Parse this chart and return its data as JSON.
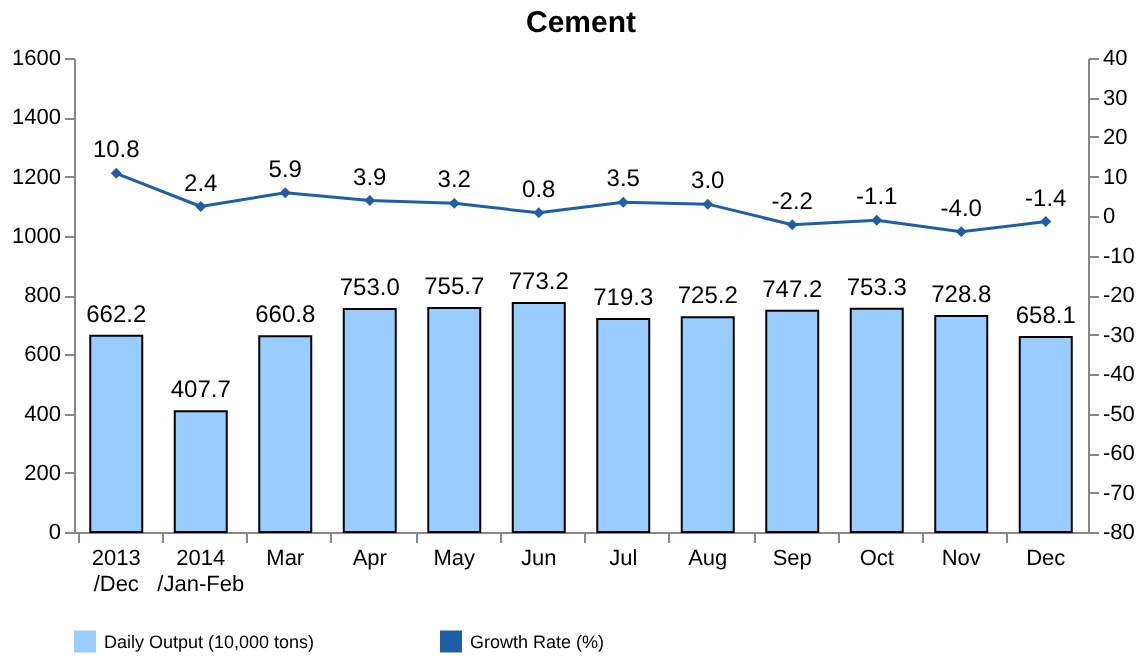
{
  "chart_data": {
    "type": "bar",
    "title": "Cement",
    "categories": [
      "2013\n/Dec",
      "2014\n/Jan-Feb",
      "Mar",
      "Apr",
      "May",
      "Jun",
      "Jul",
      "Aug",
      "Sep",
      "Oct",
      "Nov",
      "Dec"
    ],
    "series": [
      {
        "name": "Daily Output (10,000 tons)",
        "color": "#99ccff",
        "values": [
          662.2,
          407.7,
          660.8,
          753.0,
          755.7,
          773.2,
          719.3,
          725.2,
          747.2,
          753.3,
          728.8,
          658.1
        ],
        "value_labels": [
          "662.2",
          "407.7",
          "660.8",
          "753.0",
          "755.7",
          "773.2",
          "719.3",
          "725.2",
          "747.2",
          "753.3",
          "728.8",
          "658.1"
        ]
      },
      {
        "name": "Growth Rate (%)",
        "type": "line",
        "axis": "y2",
        "color": "#1f5fa8",
        "values": [
          10.8,
          2.4,
          5.9,
          3.9,
          3.2,
          0.8,
          3.5,
          3.0,
          -2.2,
          -1.1,
          -4.0,
          -1.4
        ],
        "value_labels": [
          "10.8",
          "2.4",
          "5.9",
          "3.9",
          "3.2",
          "0.8",
          "3.5",
          "3.0",
          "-2.2",
          "-1.1",
          "-4.0",
          "-1.4"
        ]
      }
    ],
    "ylim": [
      0,
      1600
    ],
    "yticks": [
      0,
      200,
      400,
      600,
      800,
      1000,
      1200,
      1400,
      1600
    ],
    "y2lim": [
      -80,
      40
    ],
    "y2ticks": [
      -80,
      -70,
      -60,
      -50,
      -40,
      -30,
      -20,
      -10,
      0,
      10,
      20,
      30,
      40
    ],
    "legend": "bottom",
    "marker": "diamond",
    "grid": false
  }
}
